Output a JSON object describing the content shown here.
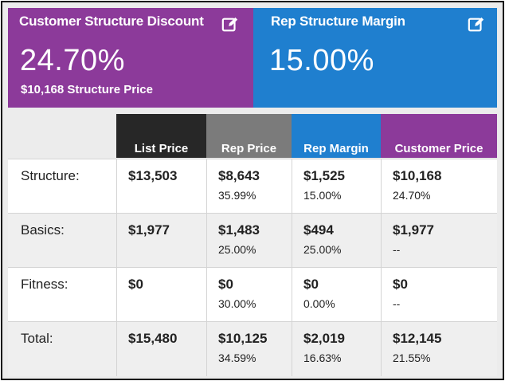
{
  "cards": {
    "discount": {
      "title": "Customer Structure Discount",
      "value": "24.70%",
      "subtitle": "$10,168 Structure Price",
      "color": "#8c3a9a",
      "icon": "edit-icon"
    },
    "margin": {
      "title": "Rep Structure Margin",
      "value": "15.00%",
      "color": "#1f7fcf",
      "icon": "edit-icon"
    }
  },
  "table": {
    "columns": [
      "List Price",
      "Rep Price",
      "Rep Margin",
      "Customer Price"
    ],
    "rows": [
      {
        "label": "Structure:",
        "list": "$13,503",
        "rep": "$8,643",
        "rep_pct": "35.99%",
        "margin": "$1,525",
        "margin_pct": "15.00%",
        "cust": "$10,168",
        "cust_pct": "24.70%"
      },
      {
        "label": "Basics:",
        "list": "$1,977",
        "rep": "$1,483",
        "rep_pct": "25.00%",
        "margin": "$494",
        "margin_pct": "25.00%",
        "cust": "$1,977",
        "cust_pct": "--"
      },
      {
        "label": "Fitness:",
        "list": "$0",
        "rep": "$0",
        "rep_pct": "30.00%",
        "margin": "$0",
        "margin_pct": "0.00%",
        "cust": "$0",
        "cust_pct": "--"
      },
      {
        "label": "Total:",
        "list": "$15,480",
        "rep": "$10,125",
        "rep_pct": "34.59%",
        "margin": "$2,019",
        "margin_pct": "16.63%",
        "cust": "$12,145",
        "cust_pct": "21.55%"
      }
    ]
  }
}
